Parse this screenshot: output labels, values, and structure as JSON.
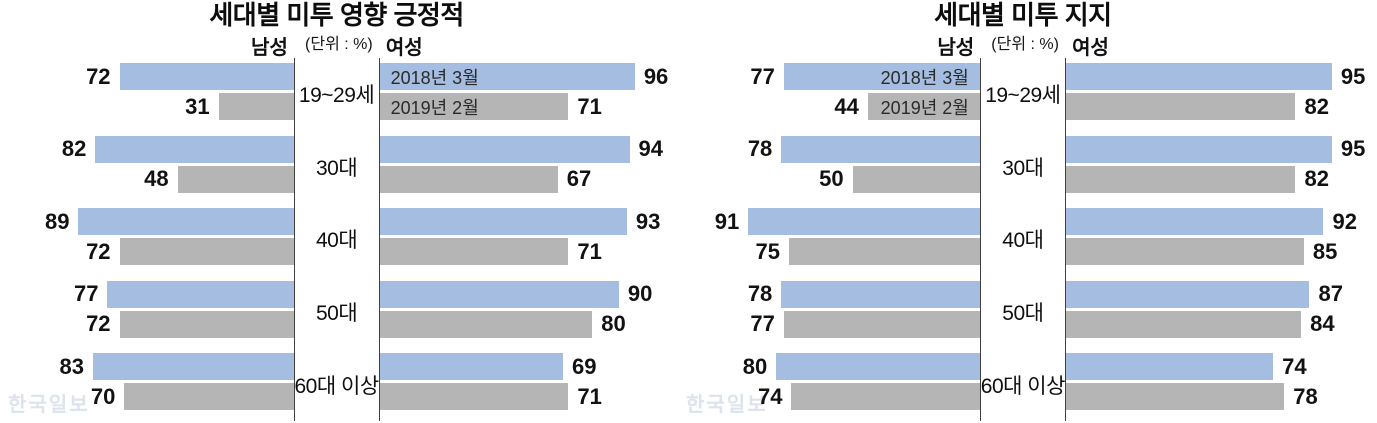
{
  "watermark": "한국일보",
  "colors": {
    "series_2018_blue": "#a4bde1",
    "series_2019_gray": "#b5b5b5",
    "axis_line": "#3f3f3f",
    "watermark": "#dde3ee",
    "text": "#111111"
  },
  "chart_data": [
    {
      "type": "bar",
      "variant": "butterfly",
      "title": "세대별 미투 영향 긍정적",
      "left_label": "남성",
      "right_label": "여성",
      "unit_label": "(단위 : %)",
      "categories": [
        "19~29세",
        "30대",
        "40대",
        "50대",
        "60대 이상"
      ],
      "legend_side": "female",
      "axis_range_percent": [
        0,
        100
      ],
      "series": [
        {
          "name": "2018년 3월",
          "color": "#a4bde1",
          "male": [
            72,
            82,
            89,
            77,
            83
          ],
          "female": [
            96,
            94,
            93,
            90,
            69
          ]
        },
        {
          "name": "2019년 2월",
          "color": "#b5b5b5",
          "male": [
            31,
            48,
            72,
            72,
            70
          ],
          "female": [
            71,
            67,
            71,
            80,
            71
          ]
        }
      ]
    },
    {
      "type": "bar",
      "variant": "butterfly",
      "title": "세대별 미투 지지",
      "left_label": "남성",
      "right_label": "여성",
      "unit_label": "(단위 : %)",
      "categories": [
        "19~29세",
        "30대",
        "40대",
        "50대",
        "60대 이상"
      ],
      "legend_side": "male",
      "axis_range_percent": [
        0,
        100
      ],
      "series": [
        {
          "name": "2018년 3월",
          "color": "#a4bde1",
          "male": [
            77,
            78,
            91,
            78,
            80
          ],
          "female": [
            95,
            95,
            92,
            87,
            74
          ]
        },
        {
          "name": "2019년 2월",
          "color": "#b5b5b5",
          "male": [
            44,
            50,
            75,
            77,
            74
          ],
          "female": [
            82,
            82,
            85,
            84,
            78
          ]
        }
      ]
    }
  ]
}
